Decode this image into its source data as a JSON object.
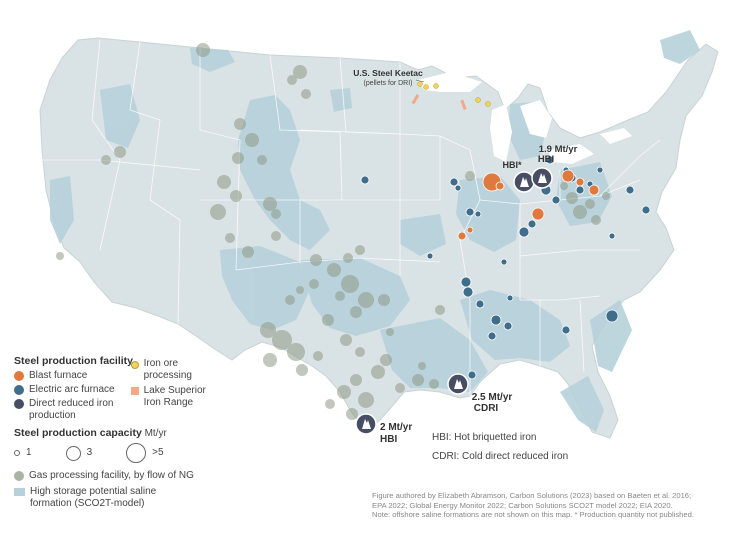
{
  "map": {
    "annotations": {
      "keetac": {
        "title": "U.S. Steel Keetac",
        "sub": "(pellets for DRI)"
      },
      "hbi_star": "HBI*",
      "ohio": {
        "value": "1.9 Mt/yr",
        "type": "HBI"
      },
      "louisiana": {
        "value": "2.5 Mt/yr",
        "type": "CDRI"
      },
      "texas": {
        "value": "2 Mt/yr",
        "type": "HBI"
      }
    },
    "colors": {
      "land": "#d9e2e5",
      "saline": "#b6d1da",
      "state_lines": "#ffffff",
      "blast_furnace": "#e0793d",
      "electric_arc": "#3f6d8c",
      "dri": "#474d63",
      "iron_ore": "#f0d45a",
      "lake_superior": "#f2a98a",
      "gas": "#8f9a86"
    }
  },
  "legend": {
    "facility_title": "Steel production facility",
    "blast_furnace": "Blast furnace",
    "electric_arc": "Electric arc furnace",
    "dri_line1": "Direct reduced iron",
    "dri_line2": "production",
    "iron_ore_line1": "Iron ore",
    "iron_ore_line2": "processing",
    "lake_line1": "Lake Superior",
    "lake_line2": "Iron Range",
    "capacity_title": "Steel production capacity",
    "capacity_unit": "Mt/yr",
    "sizes": [
      "1",
      "3",
      ">5"
    ],
    "gas": "Gas processing facility, by flow of NG",
    "saline_line1": "High storage potential saline",
    "saline_line2": "formation (SCO2T-model)"
  },
  "abbreviations": {
    "hbi": "HBI: Hot briquetted iron",
    "cdri": "CDRI: Cold direct reduced iron"
  },
  "footnote": {
    "line1": "Figure authored by Elizabeth Abramson, Carbon Solutions (2023) based on Baeten et al. 2016;",
    "line2": "EPA 2022; Global Energy Monitor 2022; Carbon Solutions SCO2T model 2022; EIA 2020.",
    "line3": "Note: offshore saline formations are not shown on this map. * Production quantity not published."
  }
}
